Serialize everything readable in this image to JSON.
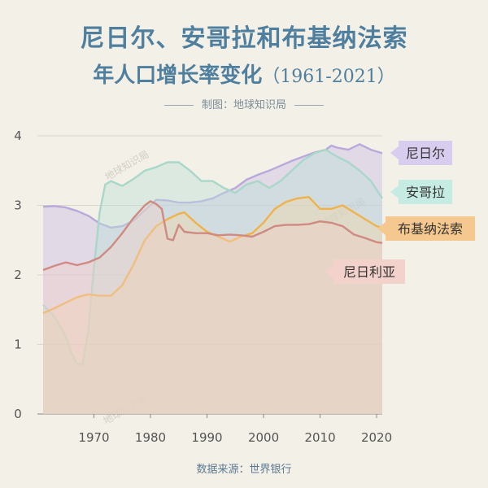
{
  "header": {
    "title": "尼日尔、安哥拉和布基纳法索",
    "subtitle": "年人口增长率变化",
    "subtitle_range": "（1961-2021）",
    "maker": "制图：地球知识局"
  },
  "footer": {
    "source": "数据来源：世界银行"
  },
  "watermark": "地球知识局",
  "chart_data": {
    "type": "area",
    "title": "尼日尔、安哥拉和布基纳法索 年人口增长率变化（1961-2021）",
    "xlabel": "",
    "ylabel": "",
    "xlim": [
      1960,
      2021
    ],
    "ylim": [
      0,
      4
    ],
    "xticks": [
      1970,
      1980,
      1990,
      2000,
      2010,
      2020
    ],
    "yticks": [
      0,
      1,
      2,
      3,
      4
    ],
    "grid": true,
    "series": [
      {
        "name": "尼日尔",
        "color": "#c9bbe2",
        "line_color": "#b9a9db",
        "label_color": "#d8cdee",
        "x": [
          1961,
          1963,
          1965,
          1967,
          1969,
          1971,
          1973,
          1975,
          1977,
          1979,
          1981,
          1983,
          1985,
          1987,
          1989,
          1991,
          1993,
          1995,
          1997,
          1999,
          2001,
          2003,
          2005,
          2007,
          2009,
          2011,
          2012,
          2013,
          2015,
          2017,
          2019,
          2021
        ],
        "values": [
          2.98,
          2.99,
          2.97,
          2.92,
          2.85,
          2.74,
          2.68,
          2.7,
          2.78,
          2.93,
          3.08,
          3.07,
          3.04,
          3.04,
          3.06,
          3.1,
          3.18,
          3.25,
          3.37,
          3.44,
          3.5,
          3.57,
          3.64,
          3.7,
          3.76,
          3.8,
          3.86,
          3.83,
          3.8,
          3.88,
          3.8,
          3.75
        ]
      },
      {
        "name": "安哥拉",
        "color": "#b9e1d6",
        "line_color": "#a9d7ca",
        "label_color": "#c6ebe2",
        "x": [
          1961,
          1963,
          1965,
          1966,
          1967,
          1968,
          1969,
          1970,
          1971,
          1972,
          1973,
          1975,
          1977,
          1979,
          1981,
          1983,
          1985,
          1987,
          1989,
          1991,
          1993,
          1995,
          1997,
          1999,
          2001,
          2003,
          2005,
          2007,
          2009,
          2011,
          2013,
          2015,
          2017,
          2019,
          2021
        ],
        "values": [
          1.57,
          1.4,
          1.12,
          0.88,
          0.72,
          0.72,
          1.2,
          2.1,
          2.9,
          3.3,
          3.35,
          3.28,
          3.38,
          3.5,
          3.55,
          3.62,
          3.62,
          3.5,
          3.35,
          3.35,
          3.25,
          3.18,
          3.3,
          3.35,
          3.25,
          3.35,
          3.5,
          3.65,
          3.75,
          3.8,
          3.7,
          3.62,
          3.5,
          3.35,
          3.1
        ]
      },
      {
        "name": "布基纳法索",
        "color": "#f2d5a8",
        "line_color": "#f0b24a",
        "label_color": "#f4c88e",
        "x": [
          1961,
          1963,
          1965,
          1967,
          1969,
          1971,
          1973,
          1975,
          1977,
          1979,
          1981,
          1983,
          1985,
          1986,
          1988,
          1990,
          1992,
          1994,
          1996,
          1998,
          2000,
          2002,
          2004,
          2006,
          2008,
          2010,
          2012,
          2014,
          2016,
          2018,
          2020,
          2021
        ],
        "values": [
          1.45,
          1.52,
          1.6,
          1.68,
          1.72,
          1.7,
          1.7,
          1.85,
          2.15,
          2.5,
          2.7,
          2.8,
          2.88,
          2.9,
          2.75,
          2.62,
          2.55,
          2.48,
          2.55,
          2.6,
          2.75,
          2.95,
          3.05,
          3.1,
          3.12,
          2.95,
          2.95,
          3.0,
          2.9,
          2.8,
          2.7,
          2.68
        ]
      },
      {
        "name": "尼日利亚",
        "color": "#f0cfc7",
        "line_color": "#cf8a82",
        "label_color": "#f4d2cc",
        "x": [
          1961,
          1963,
          1965,
          1967,
          1969,
          1971,
          1973,
          1975,
          1977,
          1979,
          1980,
          1981,
          1982,
          1983,
          1984,
          1985,
          1986,
          1988,
          1990,
          1992,
          1994,
          1996,
          1998,
          2000,
          2002,
          2004,
          2006,
          2008,
          2010,
          2012,
          2014,
          2016,
          2018,
          2020,
          2021
        ],
        "values": [
          2.07,
          2.13,
          2.18,
          2.14,
          2.18,
          2.25,
          2.4,
          2.6,
          2.82,
          3.0,
          3.06,
          3.02,
          2.95,
          2.52,
          2.5,
          2.72,
          2.62,
          2.6,
          2.6,
          2.57,
          2.58,
          2.57,
          2.55,
          2.62,
          2.7,
          2.72,
          2.72,
          2.73,
          2.77,
          2.75,
          2.7,
          2.58,
          2.53,
          2.47,
          2.46
        ]
      }
    ]
  }
}
